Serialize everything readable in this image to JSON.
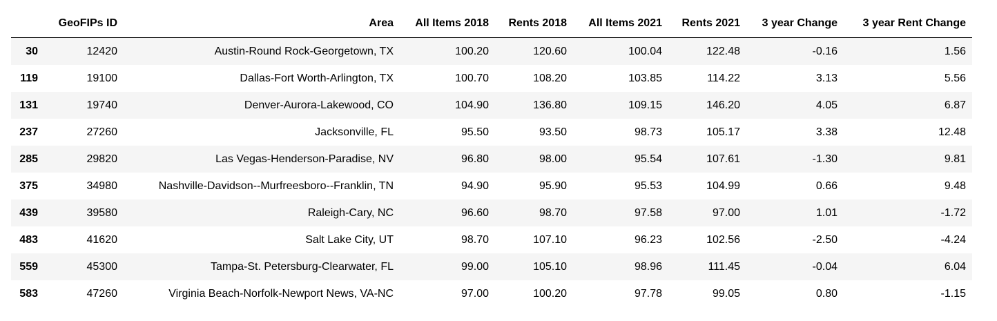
{
  "table": {
    "columns": [
      "",
      "GeoFIPs ID",
      "Area",
      "All Items 2018",
      "Rents 2018",
      "All Items 2021",
      "Rents 2021",
      "3 year Change",
      "3 year Rent Change"
    ],
    "rows": [
      {
        "index": "30",
        "geofips": "12420",
        "area": "Austin-Round Rock-Georgetown, TX",
        "all2018": "100.20",
        "rents2018": "120.60",
        "all2021": "100.04",
        "rents2021": "122.48",
        "change": "-0.16",
        "rent_change": "1.56"
      },
      {
        "index": "119",
        "geofips": "19100",
        "area": "Dallas-Fort Worth-Arlington, TX",
        "all2018": "100.70",
        "rents2018": "108.20",
        "all2021": "103.85",
        "rents2021": "114.22",
        "change": "3.13",
        "rent_change": "5.56"
      },
      {
        "index": "131",
        "geofips": "19740",
        "area": "Denver-Aurora-Lakewood, CO",
        "all2018": "104.90",
        "rents2018": "136.80",
        "all2021": "109.15",
        "rents2021": "146.20",
        "change": "4.05",
        "rent_change": "6.87"
      },
      {
        "index": "237",
        "geofips": "27260",
        "area": "Jacksonville, FL",
        "all2018": "95.50",
        "rents2018": "93.50",
        "all2021": "98.73",
        "rents2021": "105.17",
        "change": "3.38",
        "rent_change": "12.48"
      },
      {
        "index": "285",
        "geofips": "29820",
        "area": "Las Vegas-Henderson-Paradise, NV",
        "all2018": "96.80",
        "rents2018": "98.00",
        "all2021": "95.54",
        "rents2021": "107.61",
        "change": "-1.30",
        "rent_change": "9.81"
      },
      {
        "index": "375",
        "geofips": "34980",
        "area": "Nashville-Davidson--Murfreesboro--Franklin, TN",
        "all2018": "94.90",
        "rents2018": "95.90",
        "all2021": "95.53",
        "rents2021": "104.99",
        "change": "0.66",
        "rent_change": "9.48"
      },
      {
        "index": "439",
        "geofips": "39580",
        "area": "Raleigh-Cary, NC",
        "all2018": "96.60",
        "rents2018": "98.70",
        "all2021": "97.58",
        "rents2021": "97.00",
        "change": "1.01",
        "rent_change": "-1.72"
      },
      {
        "index": "483",
        "geofips": "41620",
        "area": "Salt Lake City, UT",
        "all2018": "98.70",
        "rents2018": "107.10",
        "all2021": "96.23",
        "rents2021": "102.56",
        "change": "-2.50",
        "rent_change": "-4.24"
      },
      {
        "index": "559",
        "geofips": "45300",
        "area": "Tampa-St. Petersburg-Clearwater, FL",
        "all2018": "99.00",
        "rents2018": "105.10",
        "all2021": "98.96",
        "rents2021": "111.45",
        "change": "-0.04",
        "rent_change": "6.04"
      },
      {
        "index": "583",
        "geofips": "47260",
        "area": "Virginia Beach-Norfolk-Newport News, VA-NC",
        "all2018": "97.00",
        "rents2018": "100.20",
        "all2021": "97.78",
        "rents2021": "99.05",
        "change": "0.80",
        "rent_change": "-1.15"
      }
    ]
  }
}
